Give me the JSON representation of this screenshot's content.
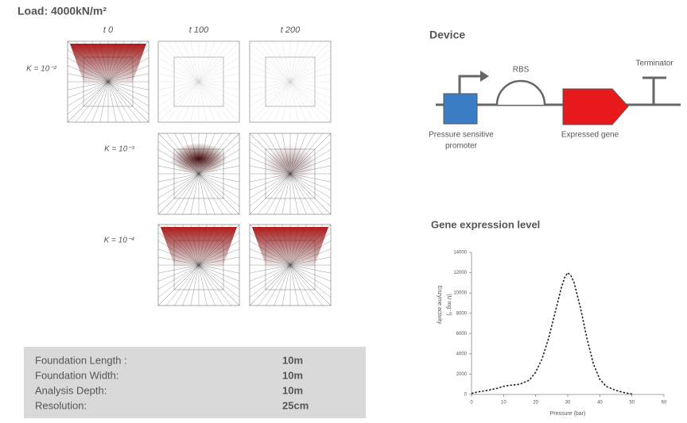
{
  "load_label": "Load: 4000kN/m²",
  "simulation": {
    "columns": [
      "t 0",
      "t 100",
      "t 200"
    ],
    "rows": [
      "K = 10⁻²",
      "K = 10⁻³",
      "K = 10⁻⁴"
    ]
  },
  "parameters_table": {
    "rows": [
      [
        "Foundation Length :",
        "10m"
      ],
      [
        "Foundation Width:",
        "10m"
      ],
      [
        "Analysis Depth:",
        "10m"
      ],
      [
        "Resolution:",
        "25cm"
      ]
    ]
  },
  "device": {
    "title": "Device",
    "rbs": "RBS",
    "terminator": "Terminator",
    "promoter": [
      "Pressure sensitive",
      "promoter"
    ],
    "gene": "Expressed gene"
  },
  "chart_data": {
    "type": "line",
    "title": "Gene expression level",
    "y_label": [
      "Enzyme activity",
      "(U mg⁻¹)"
    ],
    "x_label": "Pressure (bar)",
    "x": [
      0,
      2,
      5,
      8,
      10,
      12,
      15,
      18,
      20,
      22,
      24,
      26,
      28,
      29,
      30,
      31,
      32,
      34,
      36,
      38,
      40,
      42,
      45,
      48,
      50
    ],
    "values": [
      100,
      250,
      400,
      600,
      800,
      900,
      1000,
      1400,
      2200,
      3500,
      5500,
      8000,
      10500,
      11500,
      12000,
      11700,
      11000,
      8500,
      5500,
      3000,
      1500,
      800,
      400,
      150,
      50
    ],
    "color": "#222222",
    "dashed": true,
    "xlim": [
      0,
      60
    ],
    "ylim": [
      0,
      14000
    ],
    "xticks": [
      0,
      10,
      20,
      30,
      40,
      50,
      60
    ],
    "yticks": [
      0,
      2000,
      4000,
      6000,
      8000,
      10000,
      12000,
      14000
    ]
  }
}
